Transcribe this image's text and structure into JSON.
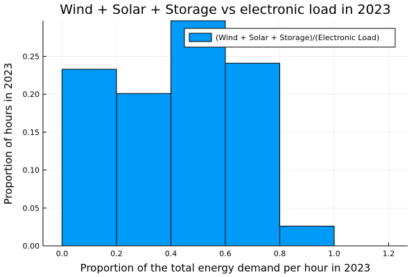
{
  "chart_data": {
    "type": "bar",
    "title": "Wind + Solar + Storage vs electronic load in 2023",
    "xlabel": "Proportion of the total energy demand per hour in 2023",
    "ylabel": "Proportion of hours in 2023",
    "xlim": [
      -0.07,
      1.27
    ],
    "ylim": [
      0,
      0.297
    ],
    "xticks": [
      0.0,
      0.2,
      0.4,
      0.6,
      0.8,
      1.0,
      1.2
    ],
    "xtick_labels": [
      "0.0",
      "0.2",
      "0.4",
      "0.6",
      "0.8",
      "1.0",
      "1.2"
    ],
    "yticks": [
      0.0,
      0.05,
      0.1,
      0.15,
      0.2,
      0.25
    ],
    "ytick_labels": [
      "0.00",
      "0.05",
      "0.10",
      "0.15",
      "0.20",
      "0.25"
    ],
    "grid": true,
    "legend_position": "top-right",
    "series": [
      {
        "name": "(Wind + Solar + Storage)/(Electronic Load)",
        "color": "#009af9",
        "bins": [
          {
            "x0": 0.0,
            "x1": 0.2,
            "value": 0.233
          },
          {
            "x0": 0.2,
            "x1": 0.4,
            "value": 0.201
          },
          {
            "x0": 0.4,
            "x1": 0.6,
            "value": 0.297
          },
          {
            "x0": 0.6,
            "x1": 0.8,
            "value": 0.241
          },
          {
            "x0": 0.8,
            "x1": 1.0,
            "value": 0.026
          }
        ]
      }
    ]
  }
}
